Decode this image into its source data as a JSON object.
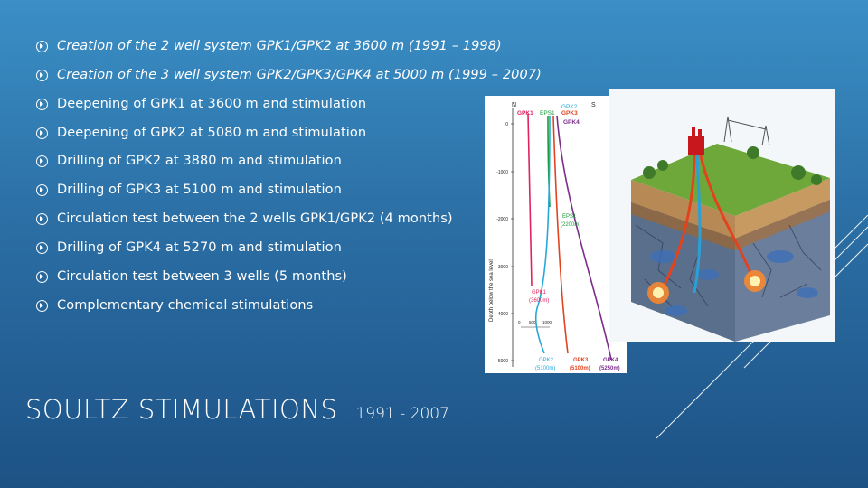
{
  "slide": {
    "title": "SOULTZ STIMULATIONS",
    "subtitle": "1991 - 2007"
  },
  "bullets": [
    {
      "text": "Creation of the 2 well system GPK1/GPK2 at 3600 m (1991 – 1998)",
      "italic": true
    },
    {
      "text": "Creation of the 3 well system GPK2/GPK3/GPK4 at 5000 m (1999 – 2007)",
      "italic": true
    },
    {
      "text": "Deepening of GPK1 at 3600 m and stimulation",
      "italic": false
    },
    {
      "text": "Deepening of GPK2 at 5080 m and stimulation",
      "italic": false
    },
    {
      "text": "Drilling of GPK2 at 3880 m and stimulation",
      "italic": false
    },
    {
      "text": "Drilling of GPK3 at 5100 m and stimulation",
      "italic": false
    },
    {
      "text": "Circulation test between the 2 wells GPK1/GPK2 (4 months)",
      "italic": false
    },
    {
      "text": "Drilling of GPK4 at 5270 m and stimulation",
      "italic": false
    },
    {
      "text": "Circulation test between 3 wells (5 months)",
      "italic": false
    },
    {
      "text": "Complementary chemical stimulations",
      "italic": false
    }
  ],
  "well_diagram": {
    "north": "N",
    "south": "S",
    "top_labels": {
      "gpk2": "GPK2",
      "gpk1": "GPK1",
      "eps1": "EPS1",
      "gpk3": "GPK3",
      "gpk4": "GPK4"
    },
    "depth_axis_label": "Depth below the sea level",
    "depth_ticks": [
      "0",
      "-1000",
      "-2000",
      "-3000",
      "-4000",
      "-5000"
    ],
    "scale_ticks": [
      "0",
      "500",
      "1000"
    ],
    "eps1_label": "EPS1",
    "eps1_depth": "(2200m)",
    "gpk1_label": "GPK1",
    "gpk1_depth": "(3600m)",
    "bottom_labels": [
      {
        "name": "GPK2",
        "depth": "(5100m)"
      },
      {
        "name": "GPK3",
        "depth": "(5100m)"
      },
      {
        "name": "GPK4",
        "depth": "(5250m)"
      }
    ],
    "colors": {
      "gpk1": "#e0245e",
      "gpk2": "#26a9d8",
      "gpk3": "#e2431f",
      "gpk4": "#7c2d8c",
      "eps1": "#1a9a3a"
    }
  }
}
